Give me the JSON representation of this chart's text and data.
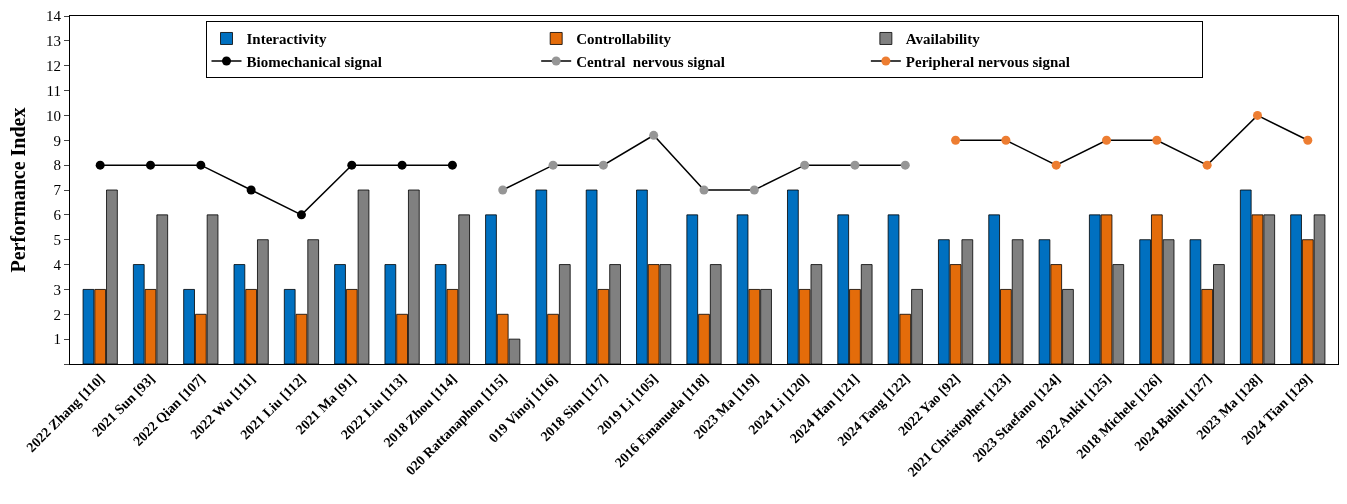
{
  "chart_data": {
    "type": "bar",
    "ylabel": "Performance Index",
    "categories": [
      "2022 Zhang [110]",
      "2021 Sun [93]",
      "2022 Qian [107]",
      "2022 Wu [111]",
      "2021 Liu [112]",
      "2021 Ma [91]",
      "2022 Liu [113]",
      "2018 Zhou [114]",
      "020 Rattanaphon [115]",
      "019 Vinoj [116]",
      "2018 Sim [117]",
      "2019 Li [105]",
      "2016 Emanuela [118]",
      "2023 Ma [119]",
      "2024 Li [120]",
      "2024 Han [121]",
      "2024 Tang [122]",
      "2022 Yao [92]",
      "2021 Christopher [123]",
      "2023 Staefano [124]",
      "2022 Ankit [125]",
      "2018 Michele [126]",
      "2024 Balint [127]",
      "2023 Ma [128]",
      "2024 Tian [129]"
    ],
    "series": [
      {
        "name": "Interactivity",
        "color": "#0070c0",
        "values": [
          3,
          4,
          3,
          4,
          3,
          4,
          4,
          4,
          6,
          7,
          7,
          7,
          6,
          6,
          7,
          6,
          6,
          5,
          6,
          5,
          6,
          5,
          5,
          7,
          6
        ]
      },
      {
        "name": "Controllability",
        "color": "#e46c0a",
        "values": [
          3,
          3,
          2,
          3,
          2,
          3,
          2,
          3,
          2,
          2,
          3,
          4,
          2,
          3,
          3,
          3,
          2,
          4,
          3,
          4,
          6,
          6,
          3,
          6,
          5
        ]
      },
      {
        "name": "Availability",
        "color": "#808080",
        "values": [
          7,
          6,
          6,
          5,
          5,
          7,
          7,
          6,
          1,
          4,
          4,
          4,
          4,
          3,
          4,
          4,
          3,
          5,
          5,
          3,
          4,
          5,
          4,
          6,
          6
        ]
      },
      {
        "name": "Biomechanical signal",
        "color": "#000000",
        "type": "line",
        "values": [
          8,
          8,
          8,
          7,
          6,
          8,
          8,
          8,
          null,
          null,
          null,
          null,
          null,
          null,
          null,
          null,
          null,
          null,
          null,
          null,
          null,
          null,
          null,
          null,
          null
        ]
      },
      {
        "name": "Central  nervous signal",
        "color": "#969696",
        "type": "line",
        "values": [
          null,
          null,
          null,
          null,
          null,
          null,
          null,
          null,
          7,
          8,
          8,
          9.2,
          7,
          7,
          8,
          8,
          8,
          null,
          null,
          null,
          null,
          null,
          null,
          null,
          null
        ]
      },
      {
        "name": "Peripheral nervous signal",
        "color": "#ed7d31",
        "type": "line",
        "values": [
          null,
          null,
          null,
          null,
          null,
          null,
          null,
          null,
          null,
          null,
          null,
          null,
          null,
          null,
          null,
          null,
          null,
          9,
          9,
          8,
          9,
          9,
          8,
          10,
          9
        ]
      }
    ],
    "ylim": [
      0,
      14
    ],
    "yticks": [
      {
        "value": 0,
        "label": null
      },
      1,
      2,
      3,
      4,
      5,
      6,
      7,
      8,
      9,
      10,
      11,
      12,
      13,
      14
    ],
    "marker": "circle",
    "line_style": "solid",
    "legend": "top"
  }
}
